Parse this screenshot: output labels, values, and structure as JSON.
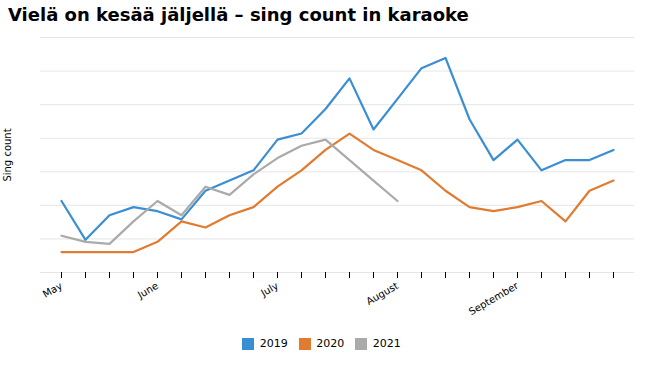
{
  "chart_data": {
    "type": "line",
    "title": "Vielä on kesää jäljellä – sing count in karaoke",
    "ylabel": "Sing count",
    "categories": [
      "May",
      null,
      null,
      null,
      "June",
      null,
      null,
      null,
      null,
      "July",
      null,
      null,
      null,
      null,
      "August",
      null,
      null,
      null,
      null,
      "September",
      null,
      null,
      null,
      null
    ],
    "series": [
      {
        "name": "2019",
        "color": "#3a8fd4",
        "values": [
          35,
          16,
          28,
          32,
          30,
          26,
          40,
          45,
          50,
          65,
          68,
          80,
          95,
          70,
          85,
          100,
          105,
          75,
          55,
          65,
          50,
          55,
          55,
          60
        ]
      },
      {
        "name": "2020",
        "color": "#e07b30",
        "values": [
          10,
          10,
          10,
          10,
          15,
          25,
          22,
          28,
          32,
          42,
          50,
          60,
          68,
          60,
          55,
          50,
          40,
          32,
          30,
          32,
          35,
          25,
          40,
          45
        ]
      },
      {
        "name": "2021",
        "color": "#aaaaaa",
        "values": [
          18,
          15,
          14,
          25,
          35,
          28,
          42,
          38,
          48,
          56,
          62,
          65,
          55,
          45,
          35,
          null,
          null,
          null,
          null,
          null,
          null,
          null,
          null,
          null
        ]
      }
    ],
    "ylim": [
      0,
      115
    ],
    "yticks": [
      0,
      16.428571428571427,
      32.857142857142854,
      49.285714285714285,
      65.71428571428571,
      82.14285714285714,
      98.57142857142857,
      115
    ],
    "grid": true,
    "tick_labels": "x",
    "legend": "bottom"
  }
}
